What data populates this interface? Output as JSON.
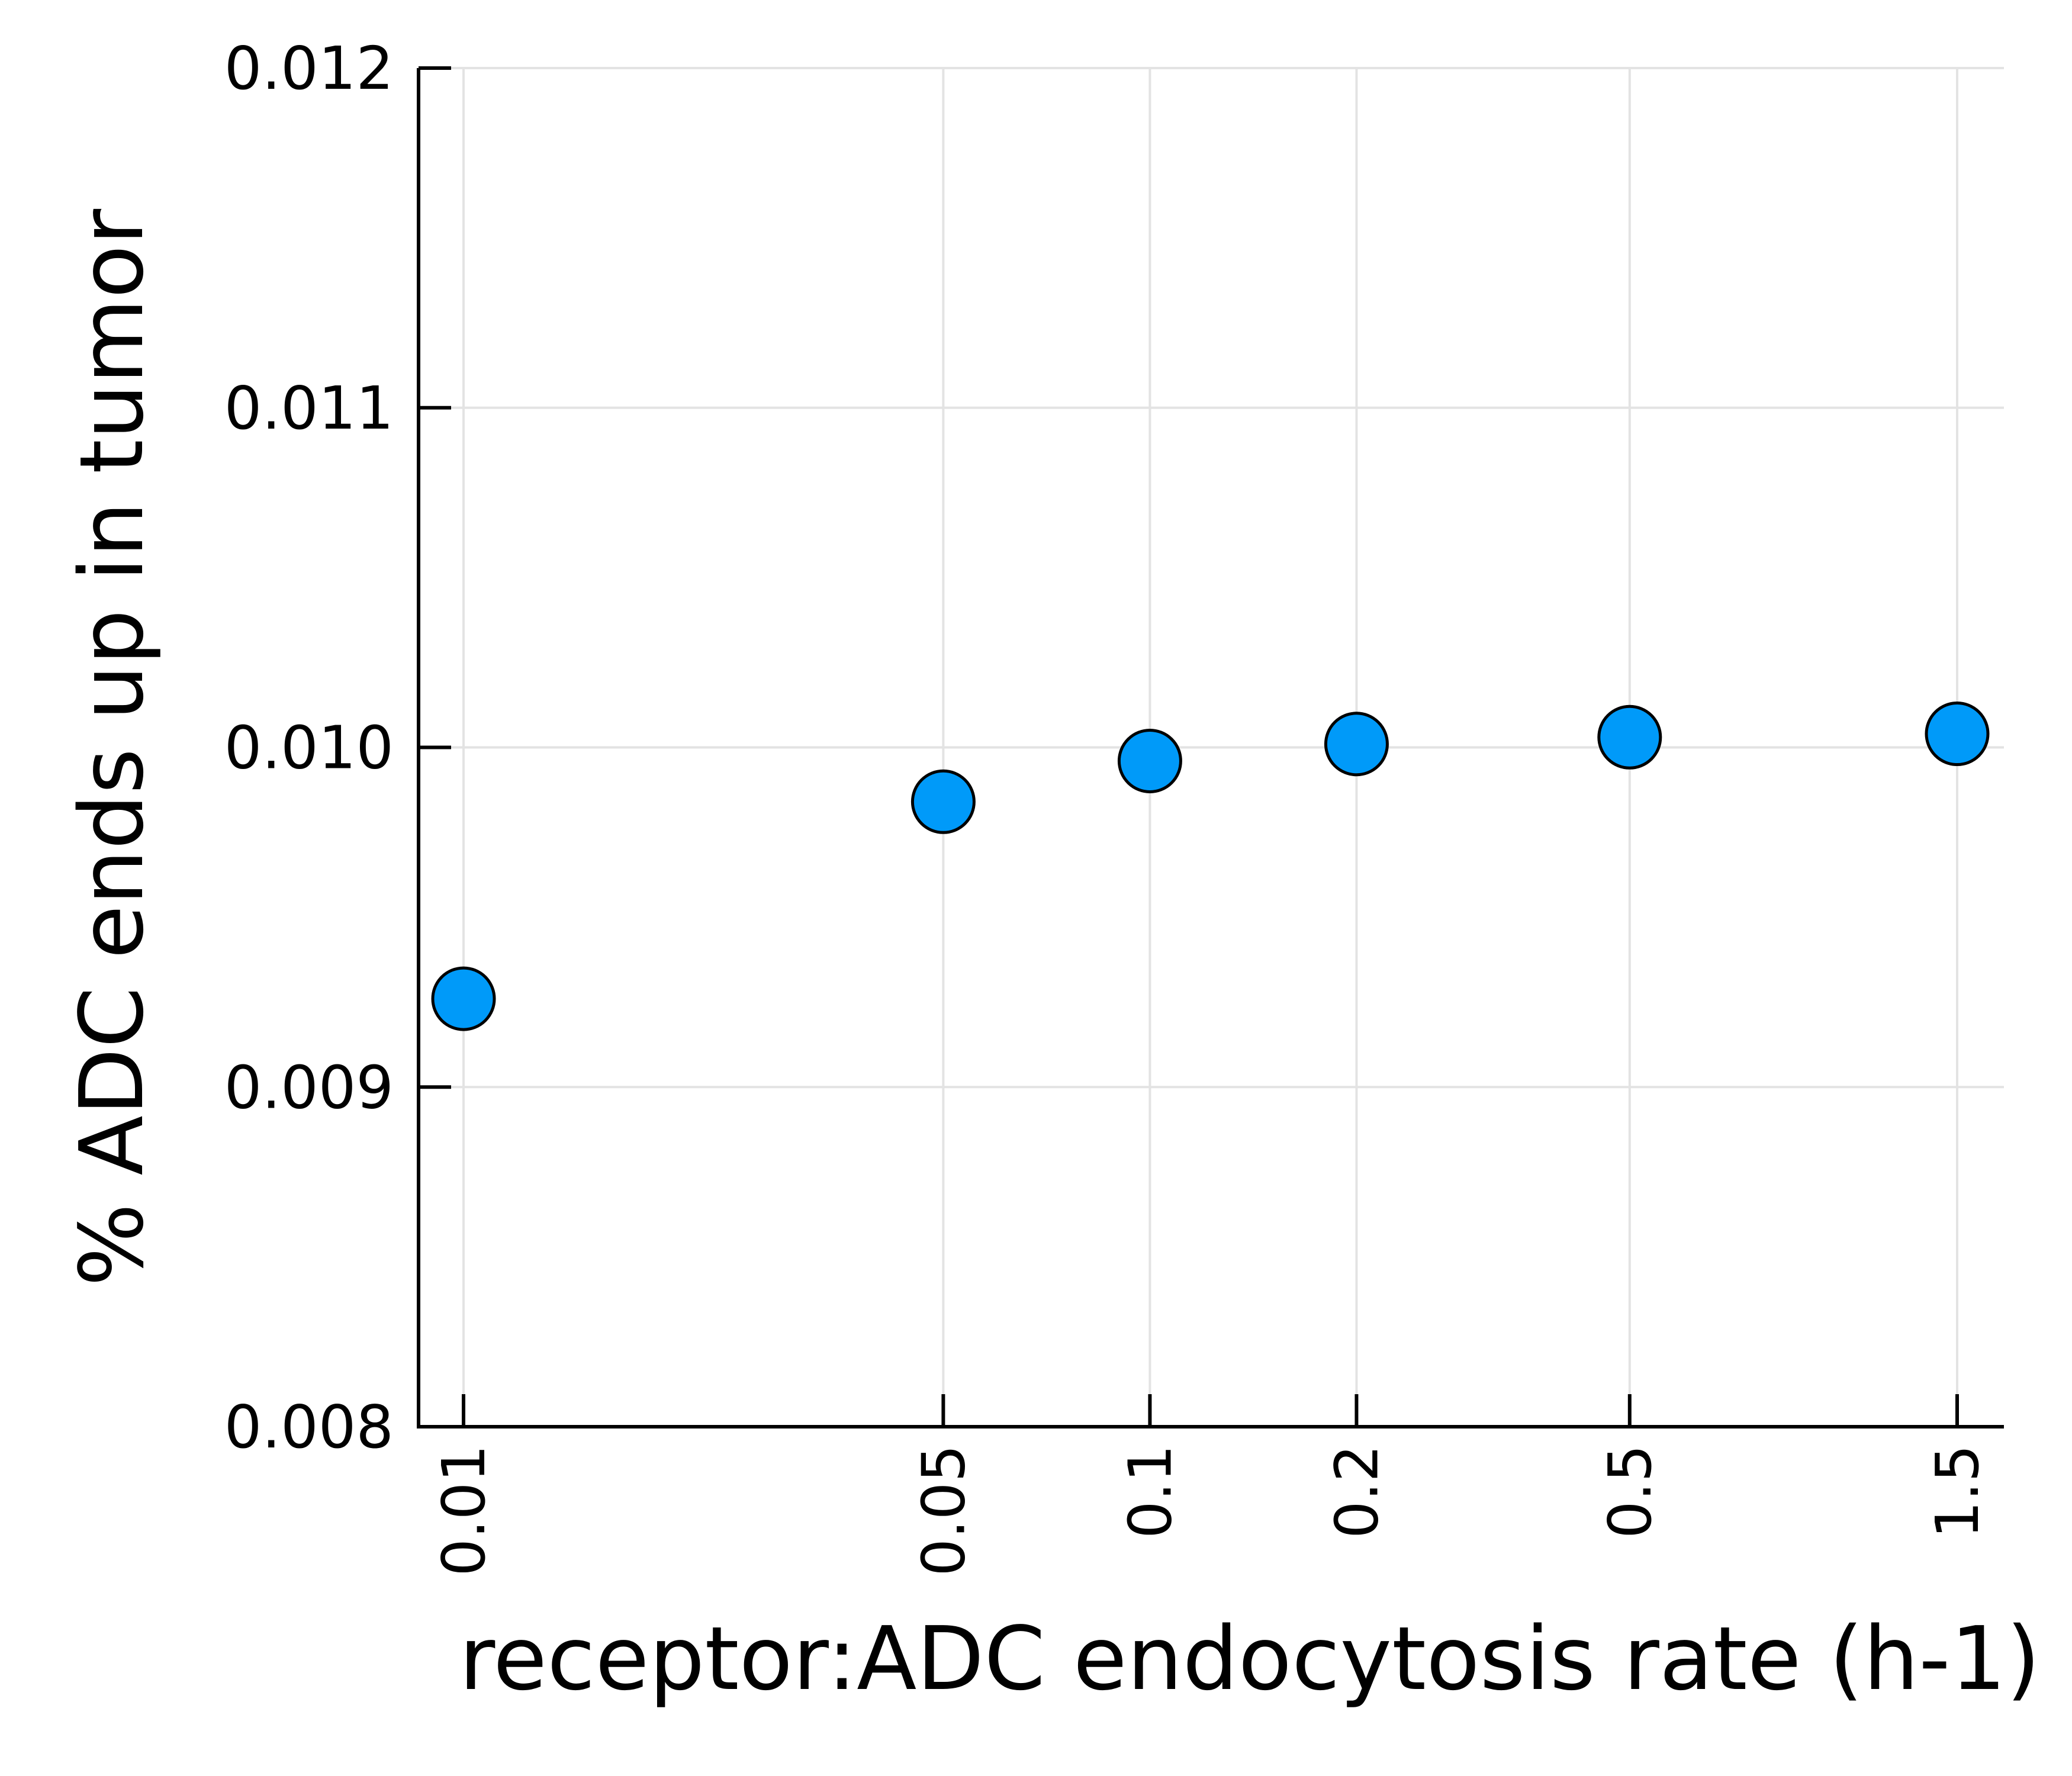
{
  "chart_data": {
    "type": "scatter",
    "xlabel": "receptor:ADC endocytosis rate (h-1)",
    "ylabel": "% ADC ends up in tumor",
    "x_scale": "log",
    "x_ticks": [
      "0.01",
      "0.05",
      "0.1",
      "0.2",
      "0.5",
      "1.5"
    ],
    "y_ticks": [
      "0.008",
      "0.009",
      "0.010",
      "0.011",
      "0.012"
    ],
    "ylim": [
      0.008,
      0.012
    ],
    "grid": true,
    "legend": "none",
    "marker_color": "#009af9",
    "series": [
      {
        "x": [
          0.01,
          0.05,
          0.1,
          0.2,
          0.5,
          1.5
        ],
        "y": [
          0.00926,
          0.00984,
          0.00996,
          0.01001,
          0.01003,
          0.01004
        ]
      }
    ]
  }
}
